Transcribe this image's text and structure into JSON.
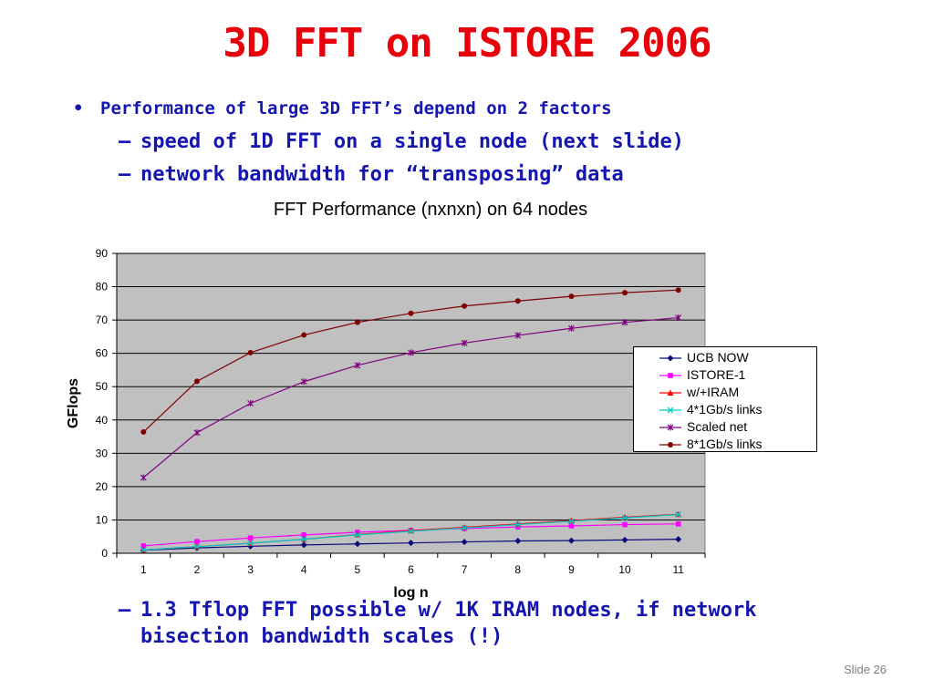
{
  "slide": {
    "title": "3D FFT on ISTORE 2006",
    "bullet": "•",
    "point_main": "Performance of large 3D FFT’s depend on 2 factors",
    "dash": "–",
    "sub_points": [
      "speed of 1D FFT on a single node (next slide)",
      "network bandwidth for “transposing” data"
    ],
    "conclusion_line1": "1.3 Tflop FFT possible w/ 1K IRAM nodes, if network",
    "conclusion_line2": "bisection bandwidth scales (!)",
    "slide_number": "Slide 26"
  },
  "chart_data": {
    "type": "line",
    "title": "FFT Performance (nxnxn) on 64 nodes",
    "xlabel": "log n",
    "ylabel": "GFlops",
    "x": [
      1,
      2,
      3,
      4,
      5,
      6,
      7,
      8,
      9,
      10,
      11
    ],
    "ylim": [
      0,
      90
    ],
    "yticks": [
      0,
      10,
      20,
      30,
      40,
      50,
      60,
      70,
      80,
      90
    ],
    "grid": "horizontal",
    "plot_background": "#c0c0c0",
    "legend_position": "right",
    "series": [
      {
        "name": "UCB NOW",
        "color": "#0a0a7a",
        "marker": "diamond",
        "values": [
          0.9,
          1.6,
          2.1,
          2.5,
          2.8,
          3.1,
          3.4,
          3.7,
          3.8,
          4.0,
          4.2
        ]
      },
      {
        "name": "ISTORE-1",
        "color": "#ff00ff",
        "marker": "square",
        "values": [
          2.2,
          3.5,
          4.6,
          5.5,
          6.3,
          6.9,
          7.4,
          7.9,
          8.2,
          8.6,
          8.8
        ]
      },
      {
        "name": "w/+IRAM",
        "color": "#ff0000",
        "marker": "triangle",
        "values": [
          1.0,
          2.0,
          3.0,
          4.2,
          5.6,
          6.8,
          7.8,
          8.8,
          9.8,
          10.8,
          11.7
        ]
      },
      {
        "name": "4*1Gb/s links",
        "color": "#00cccc",
        "marker": "x",
        "values": [
          1.0,
          2.0,
          3.0,
          4.2,
          5.5,
          6.6,
          7.6,
          8.6,
          9.6,
          10.6,
          11.6
        ]
      },
      {
        "name": "Scaled net",
        "color": "#800080",
        "marker": "star",
        "values": [
          22.7,
          36.2,
          45.0,
          51.5,
          56.4,
          60.2,
          63.1,
          65.4,
          67.5,
          69.3,
          70.7
        ]
      },
      {
        "name": "8*1Gb/s links",
        "color": "#800000",
        "marker": "circle",
        "values": [
          36.4,
          51.6,
          60.2,
          65.5,
          69.3,
          72.0,
          74.2,
          75.7,
          77.1,
          78.2,
          79.0
        ]
      }
    ]
  }
}
